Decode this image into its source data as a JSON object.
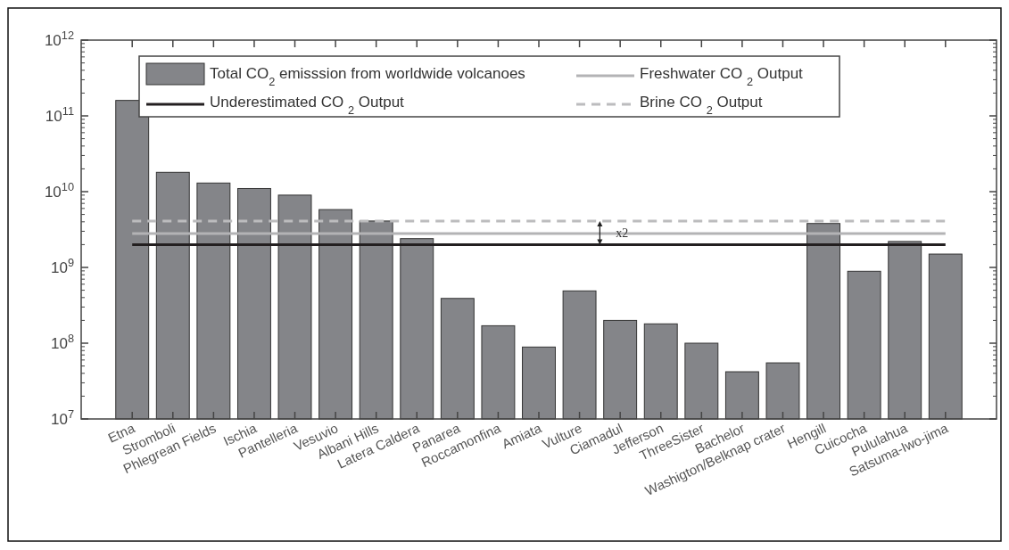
{
  "chart_data": {
    "type": "bar",
    "categories": [
      "Etna",
      "Stromboli",
      "Phlegrean Fields",
      "Ischia",
      "Pantelleria",
      "Vesuvio",
      "Albani Hills",
      "Latera Caldera",
      "Panarea",
      "Roccamonfina",
      "Amiata",
      "Vulture",
      "Ciamadul",
      "Jefferson",
      "ThreeSister",
      "Bachelor",
      "Washigton/Belknap crater",
      "Hengill",
      "Cuicocha",
      "Pululahua",
      "Satsuma-Iwo-jima"
    ],
    "series": [
      {
        "name": "Total CO$_{2}$ emisssion from worldwide volcanoes",
        "color": "#848589",
        "values": [
          160000000000.0,
          18000000000.0,
          13000000000.0,
          11000000000.0,
          9000000000.0,
          5800000000.0,
          4100000000.0,
          2400000000.0,
          390000000.0,
          170000000.0,
          89000000.0,
          490000000.0,
          200000000.0,
          180000000.0,
          100000000.0,
          42000000.0,
          55000000.0,
          3800000000.0,
          890000000.0,
          2200000000.0,
          1500000000.0
        ]
      },
      {
        "name": "Underestimated CO $_{2}$ Output",
        "type": "line",
        "color": "#231f20",
        "line_style": "solid",
        "values": [
          2000000000.0,
          2000000000.0,
          2000000000.0,
          2000000000.0,
          2000000000.0,
          2000000000.0,
          2000000000.0,
          2000000000.0,
          2000000000.0,
          2000000000.0,
          2000000000.0,
          2000000000.0,
          2000000000.0,
          2000000000.0,
          2000000000.0,
          2000000000.0,
          2000000000.0,
          2000000000.0,
          2000000000.0,
          2000000000.0,
          2000000000.0
        ]
      },
      {
        "name": "Freshwater CO $_{2}$ Output",
        "type": "line",
        "color": "#b3b3b5",
        "line_style": "solid",
        "values": [
          2800000000.0,
          2800000000.0,
          2800000000.0,
          2800000000.0,
          2800000000.0,
          2800000000.0,
          2800000000.0,
          2800000000.0,
          2800000000.0,
          2800000000.0,
          2800000000.0,
          2800000000.0,
          2800000000.0,
          2800000000.0,
          2800000000.0,
          2800000000.0,
          2800000000.0,
          2800000000.0,
          2800000000.0,
          2800000000.0,
          2800000000.0
        ]
      },
      {
        "name": "Brine CO $_{2}$ Output",
        "type": "line",
        "color": "#bcbcbe",
        "line_style": "dashed",
        "values": [
          4100000000.0,
          4100000000.0,
          4100000000.0,
          4100000000.0,
          4100000000.0,
          4100000000.0,
          4100000000.0,
          4100000000.0,
          4100000000.0,
          4100000000.0,
          4100000000.0,
          4100000000.0,
          4100000000.0,
          4100000000.0,
          4100000000.0,
          4100000000.0,
          4100000000.0,
          4100000000.0,
          4100000000.0,
          4100000000.0,
          4100000000.0
        ]
      }
    ],
    "log": true,
    "ylim": [
      10000000.0,
      1000000000000.0
    ],
    "yticks": [
      {
        "value": 10000000.0,
        "label": "10$^{7}$"
      },
      {
        "value": 100000000.0,
        "label": "10$^{8}$"
      },
      {
        "value": 1000000000.0,
        "label": "10$^{9}$"
      },
      {
        "value": 10000000000.0,
        "label": "10$^{10}$"
      },
      {
        "value": 100000000000.0,
        "label": "10$^{11}$"
      },
      {
        "value": 1000000000000.0,
        "label": "10$^{12}$"
      }
    ],
    "annotations": [
      "x2"
    ],
    "legend": "top",
    "grid": false
  }
}
